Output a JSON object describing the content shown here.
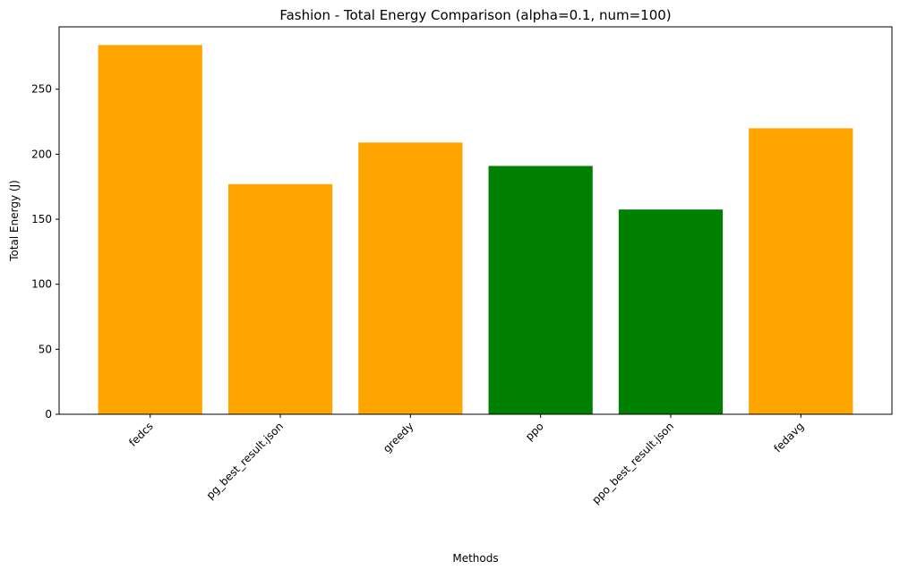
{
  "chart_data": {
    "type": "bar",
    "title": "Fashion - Total Energy Comparison (alpha=0.1, num=100)",
    "xlabel": "Methods",
    "ylabel": "Total Energy (J)",
    "categories": [
      "fedcs",
      "pg_best_result.json",
      "greedy",
      "ppo",
      "ppo_best_result.json",
      "fedavg"
    ],
    "values": [
      284,
      177,
      209,
      191,
      157.5,
      220
    ],
    "bar_colors": [
      "#ffa500",
      "#ffa500",
      "#ffa500",
      "#008000",
      "#008000",
      "#ffa500"
    ],
    "ylim": [
      0,
      298
    ],
    "yticks": [
      0,
      50,
      100,
      150,
      200,
      250
    ],
    "grid": false,
    "legend": "none"
  }
}
